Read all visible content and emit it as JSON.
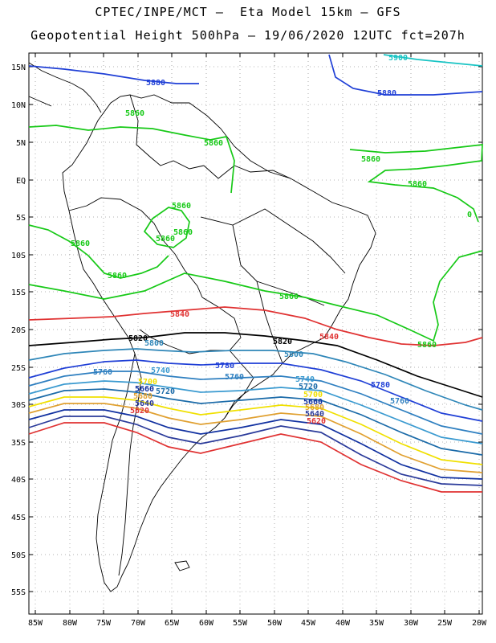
{
  "header": {
    "line1": "CPTEC/INPE/MCT –  Eta Model 15km – GFS",
    "line2": "Geopotential Height 500hPa – 19/06/2020 12UTC fct=207h"
  },
  "axes": {
    "y_labels": [
      "15N",
      "10N",
      "5N",
      "EQ",
      "5S",
      "10S",
      "15S",
      "20S",
      "25S",
      "30S",
      "35S",
      "40S",
      "45S",
      "50S",
      "55S"
    ],
    "x_labels": [
      "85W",
      "80W",
      "75W",
      "70W",
      "65W",
      "60W",
      "55W",
      "50W",
      "45W",
      "40W",
      "35W",
      "30W",
      "25W",
      "20W"
    ]
  },
  "colors": {
    "c5900": "#19c4c4",
    "c5880": "#1f3fd6",
    "c5860": "#17c917",
    "c5840": "#e03232",
    "c5820": "#000000",
    "c5800": "#2e86b8",
    "c5780": "#1f3fd6",
    "c5760": "#2e7fc0",
    "c5740": "#3a9ad0",
    "c5720": "#1a6aa8",
    "c5700": "#f0e000",
    "c5680": "#e0a030",
    "c5660": "#1030a0",
    "c5640": "#2a3a9a",
    "c5620": "#e03232"
  },
  "contour_labels": {
    "l5900": "5900",
    "l5880a": "5880",
    "l5880b": "5880",
    "l5860a": "5860",
    "l5860b": "5860",
    "l5860c": "5860",
    "l5860d": "5860",
    "l5860e": "5860",
    "l5860f": "5860",
    "l5860g": "5860",
    "l5860h": "5860",
    "l5860i": "5860",
    "l5860j": "5860",
    "l5860k": "5860",
    "l5860l": "0",
    "l5840a": "5840",
    "l5840b": "5840",
    "l5820a": "5820",
    "l5820b": "5820",
    "l5800a": "5800",
    "l5800b": "5800",
    "l5780a": "5780",
    "l5780b": "5780",
    "l5760a": "5760",
    "l5760b": "5760",
    "l5760c": "5760",
    "l5740a": "5740",
    "l5740b": "5740",
    "l5720a": "5720",
    "l5720b": "5720",
    "l5700a": "5700",
    "l5700b": "5700",
    "l5680a": "5680",
    "l5680b": "5680",
    "l5660a": "5660",
    "l5660b": "5660",
    "l5640a": "5640",
    "l5640b": "5640",
    "l5620a": "5620",
    "l5620b": "5620"
  }
}
